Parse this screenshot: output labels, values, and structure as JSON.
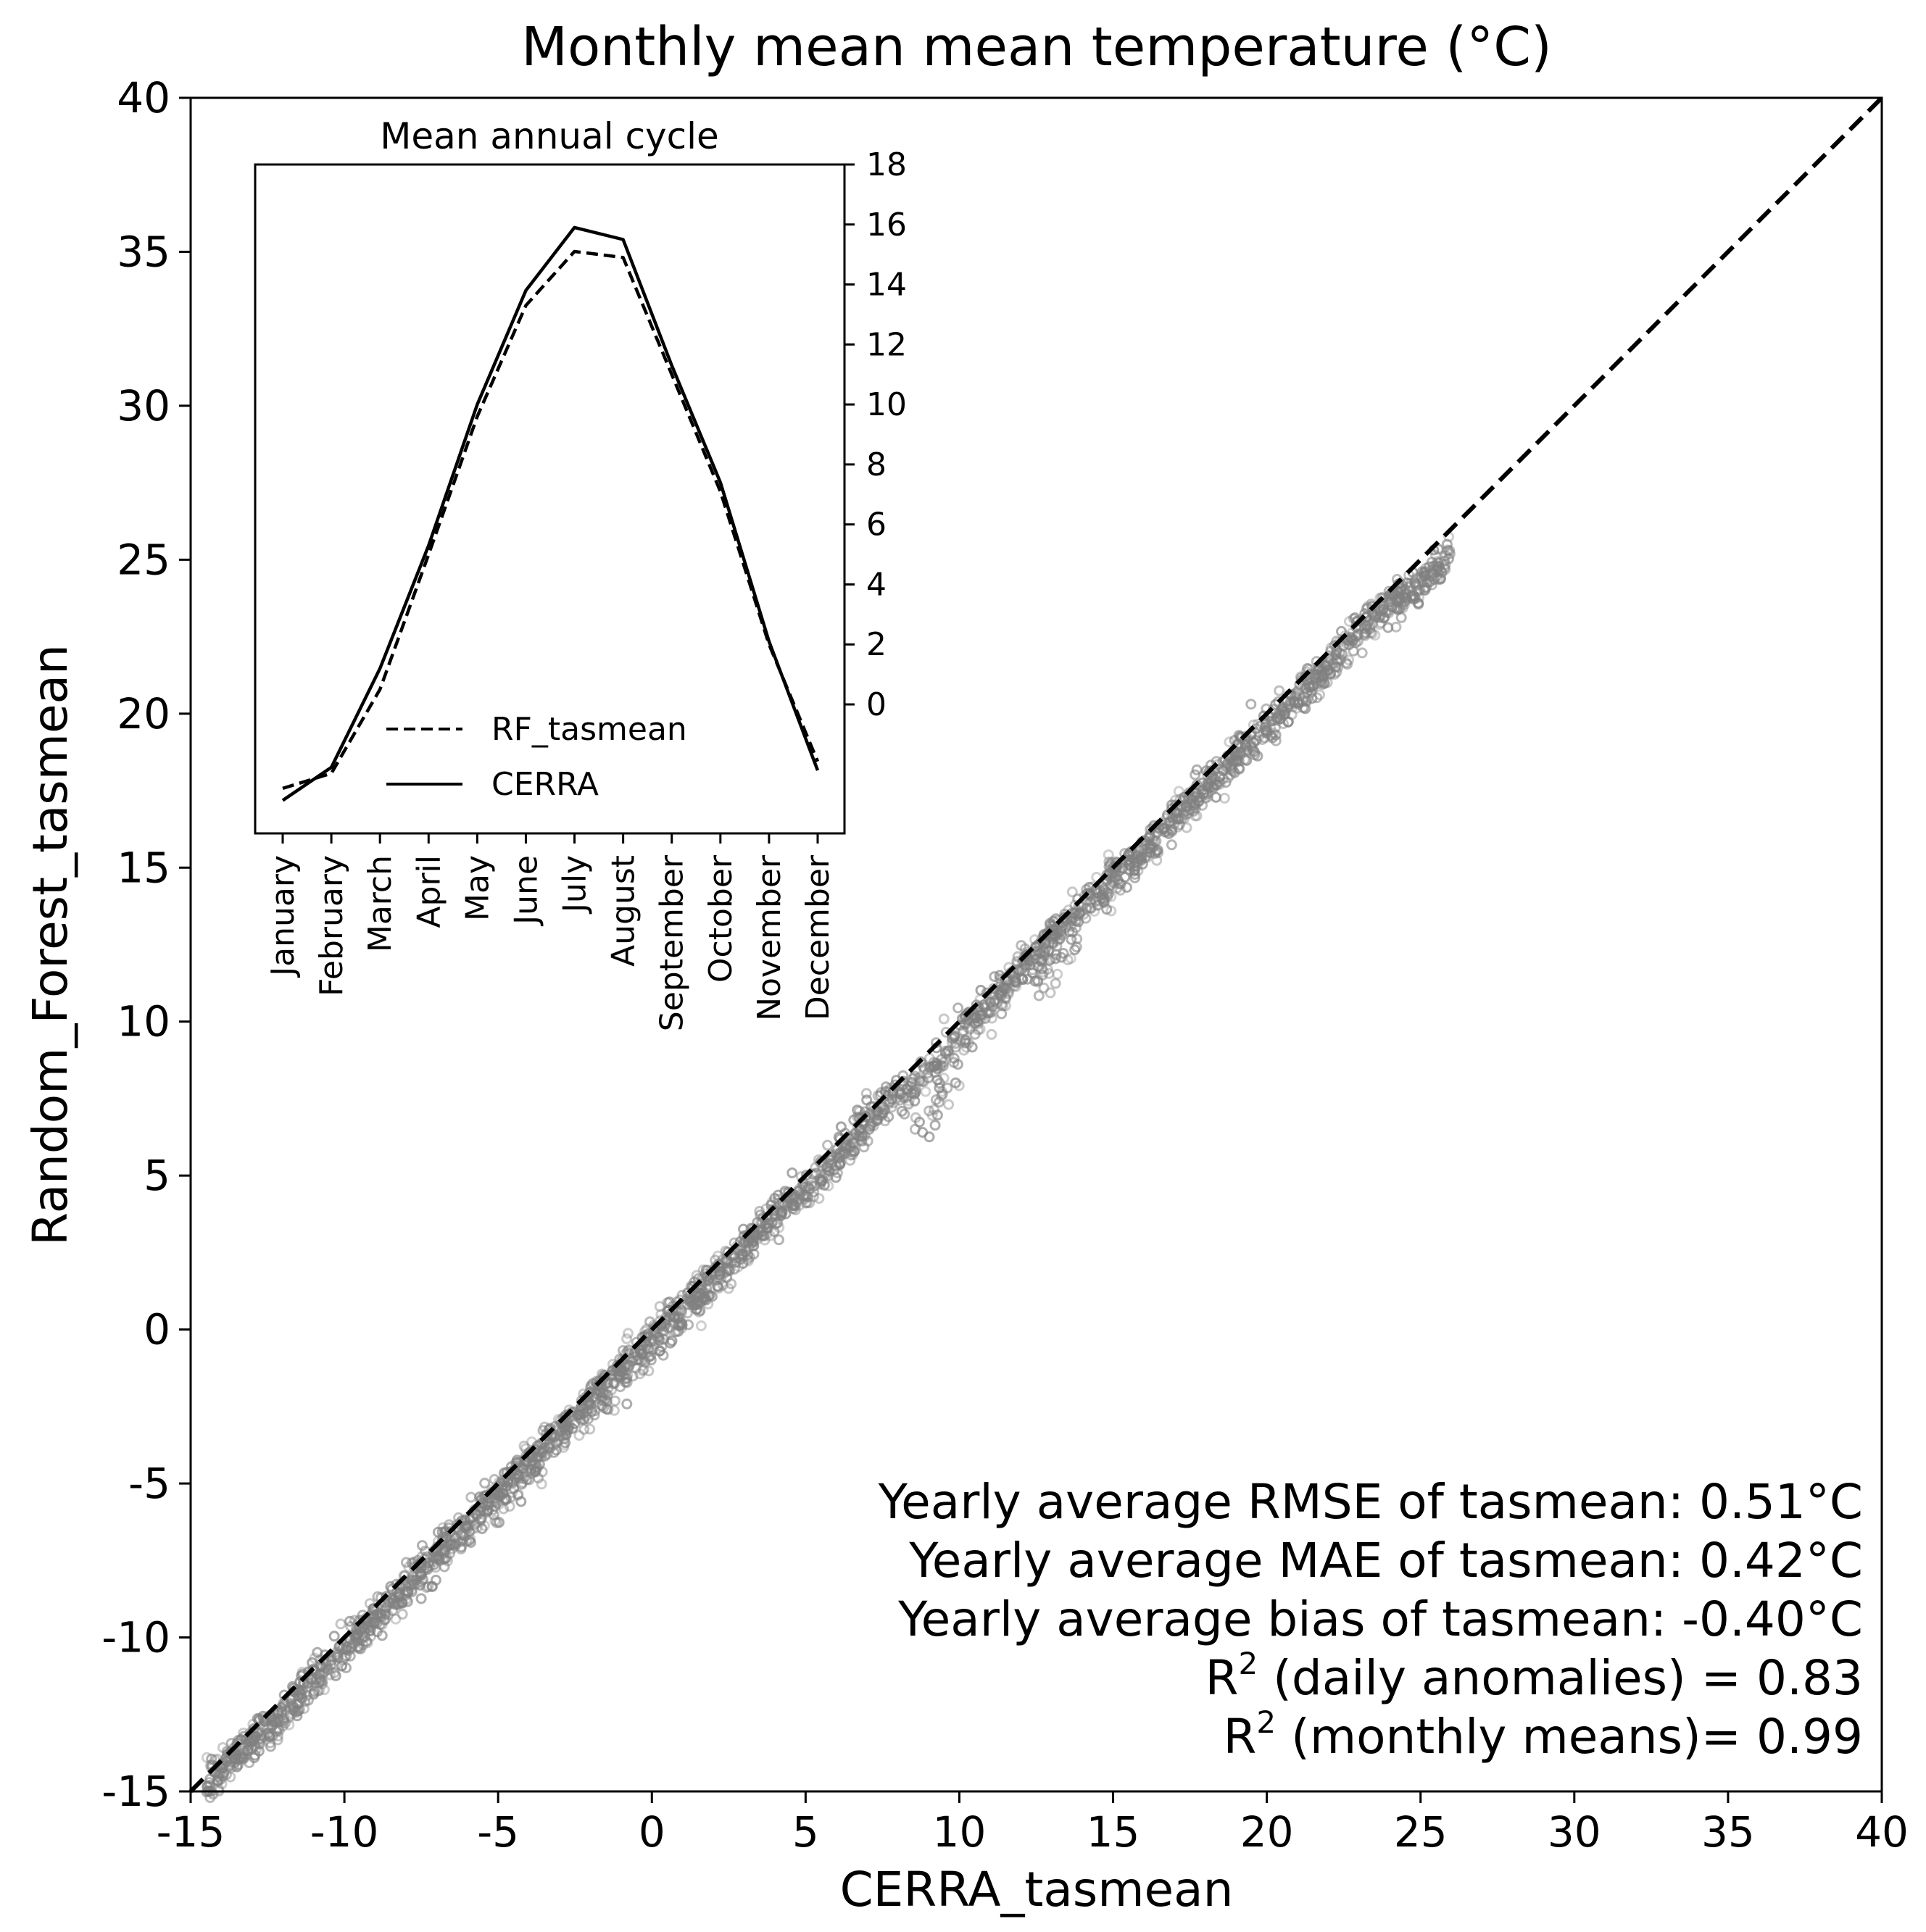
{
  "chart_data": [
    {
      "type": "scatter",
      "title": "Monthly mean mean temperature (°C)",
      "xlabel": "CERRA_tasmean",
      "ylabel": "Random_Forest_tasmean",
      "xlim": [
        -15,
        40
      ],
      "ylim": [
        -15,
        40
      ],
      "x_ticks": [
        "-15",
        "-10",
        "-5",
        "0",
        "5",
        "10",
        "15",
        "20",
        "25",
        "30",
        "35",
        "40"
      ],
      "y_ticks": [
        "-15",
        "-10",
        "-5",
        "0",
        "5",
        "10",
        "15",
        "20",
        "25",
        "30",
        "35",
        "40"
      ],
      "grid": false,
      "marker_color": "#808080",
      "reference_line": {
        "style": "dashed",
        "color": "#000000",
        "from": [
          -15,
          -15
        ],
        "to": [
          40,
          40
        ]
      },
      "point_cloud": {
        "x": [
          -14.5,
          -14,
          -13,
          -12,
          -11,
          -10,
          -9,
          -8,
          -7,
          -6,
          -5,
          -4,
          -3,
          -2,
          -1,
          0,
          1,
          2,
          3,
          4,
          5,
          6,
          7,
          8,
          9,
          10,
          11,
          12,
          13,
          14,
          15,
          16,
          17,
          18,
          19,
          20,
          21,
          22,
          23,
          24,
          25,
          26
        ],
        "y": [
          -14.8,
          -14.3,
          -13.4,
          -12.4,
          -11.4,
          -10.4,
          -9.4,
          -8.4,
          -7.4,
          -6.4,
          -5.4,
          -4.4,
          -3.4,
          -2.4,
          -1.4,
          -0.4,
          0.6,
          1.6,
          2.6,
          3.7,
          4.6,
          5.6,
          6.8,
          7.6,
          8.3,
          9.6,
          10.6,
          11.7,
          12.7,
          13.7,
          14.6,
          15.6,
          16.6,
          17.6,
          18.6,
          19.6,
          20.6,
          21.6,
          22.7,
          23.6,
          24.1,
          25.2
        ]
      },
      "annotations": {
        "rmse": "Yearly average RMSE of tasmean: 0.51°C",
        "mae": "Yearly average MAE of tasmean: 0.42°C",
        "bias": "Yearly average bias of tasmean: -0.40°C",
        "r2_daily_base": "R",
        "r2_daily_sup": "2",
        "r2_daily_rest": " (daily anomalies) = 0.83",
        "r2_monthly_base": "R",
        "r2_monthly_sup": "2",
        "r2_monthly_rest": " (monthly means)= 0.99"
      }
    },
    {
      "type": "line",
      "title": "Mean annual cycle",
      "categories": [
        "January",
        "February",
        "March",
        "April",
        "May",
        "June",
        "July",
        "August",
        "September",
        "October",
        "November",
        "December"
      ],
      "y_ticks": [
        "0",
        "2",
        "4",
        "6",
        "8",
        "10",
        "12",
        "14",
        "16",
        "18"
      ],
      "ylim": [
        -4.3,
        18
      ],
      "legend_position": "lower-center",
      "series": [
        {
          "name": "RF_tasmean",
          "style": "dashed",
          "values": [
            -2.8,
            -2.3,
            0.5,
            5.0,
            9.6,
            13.3,
            15.1,
            14.9,
            11.0,
            7.1,
            2.0,
            -1.9
          ]
        },
        {
          "name": "CERRA",
          "style": "solid",
          "values": [
            -3.2,
            -2.1,
            1.2,
            5.3,
            10.0,
            13.8,
            15.9,
            15.5,
            11.3,
            7.4,
            2.1,
            -2.2
          ]
        }
      ]
    }
  ]
}
